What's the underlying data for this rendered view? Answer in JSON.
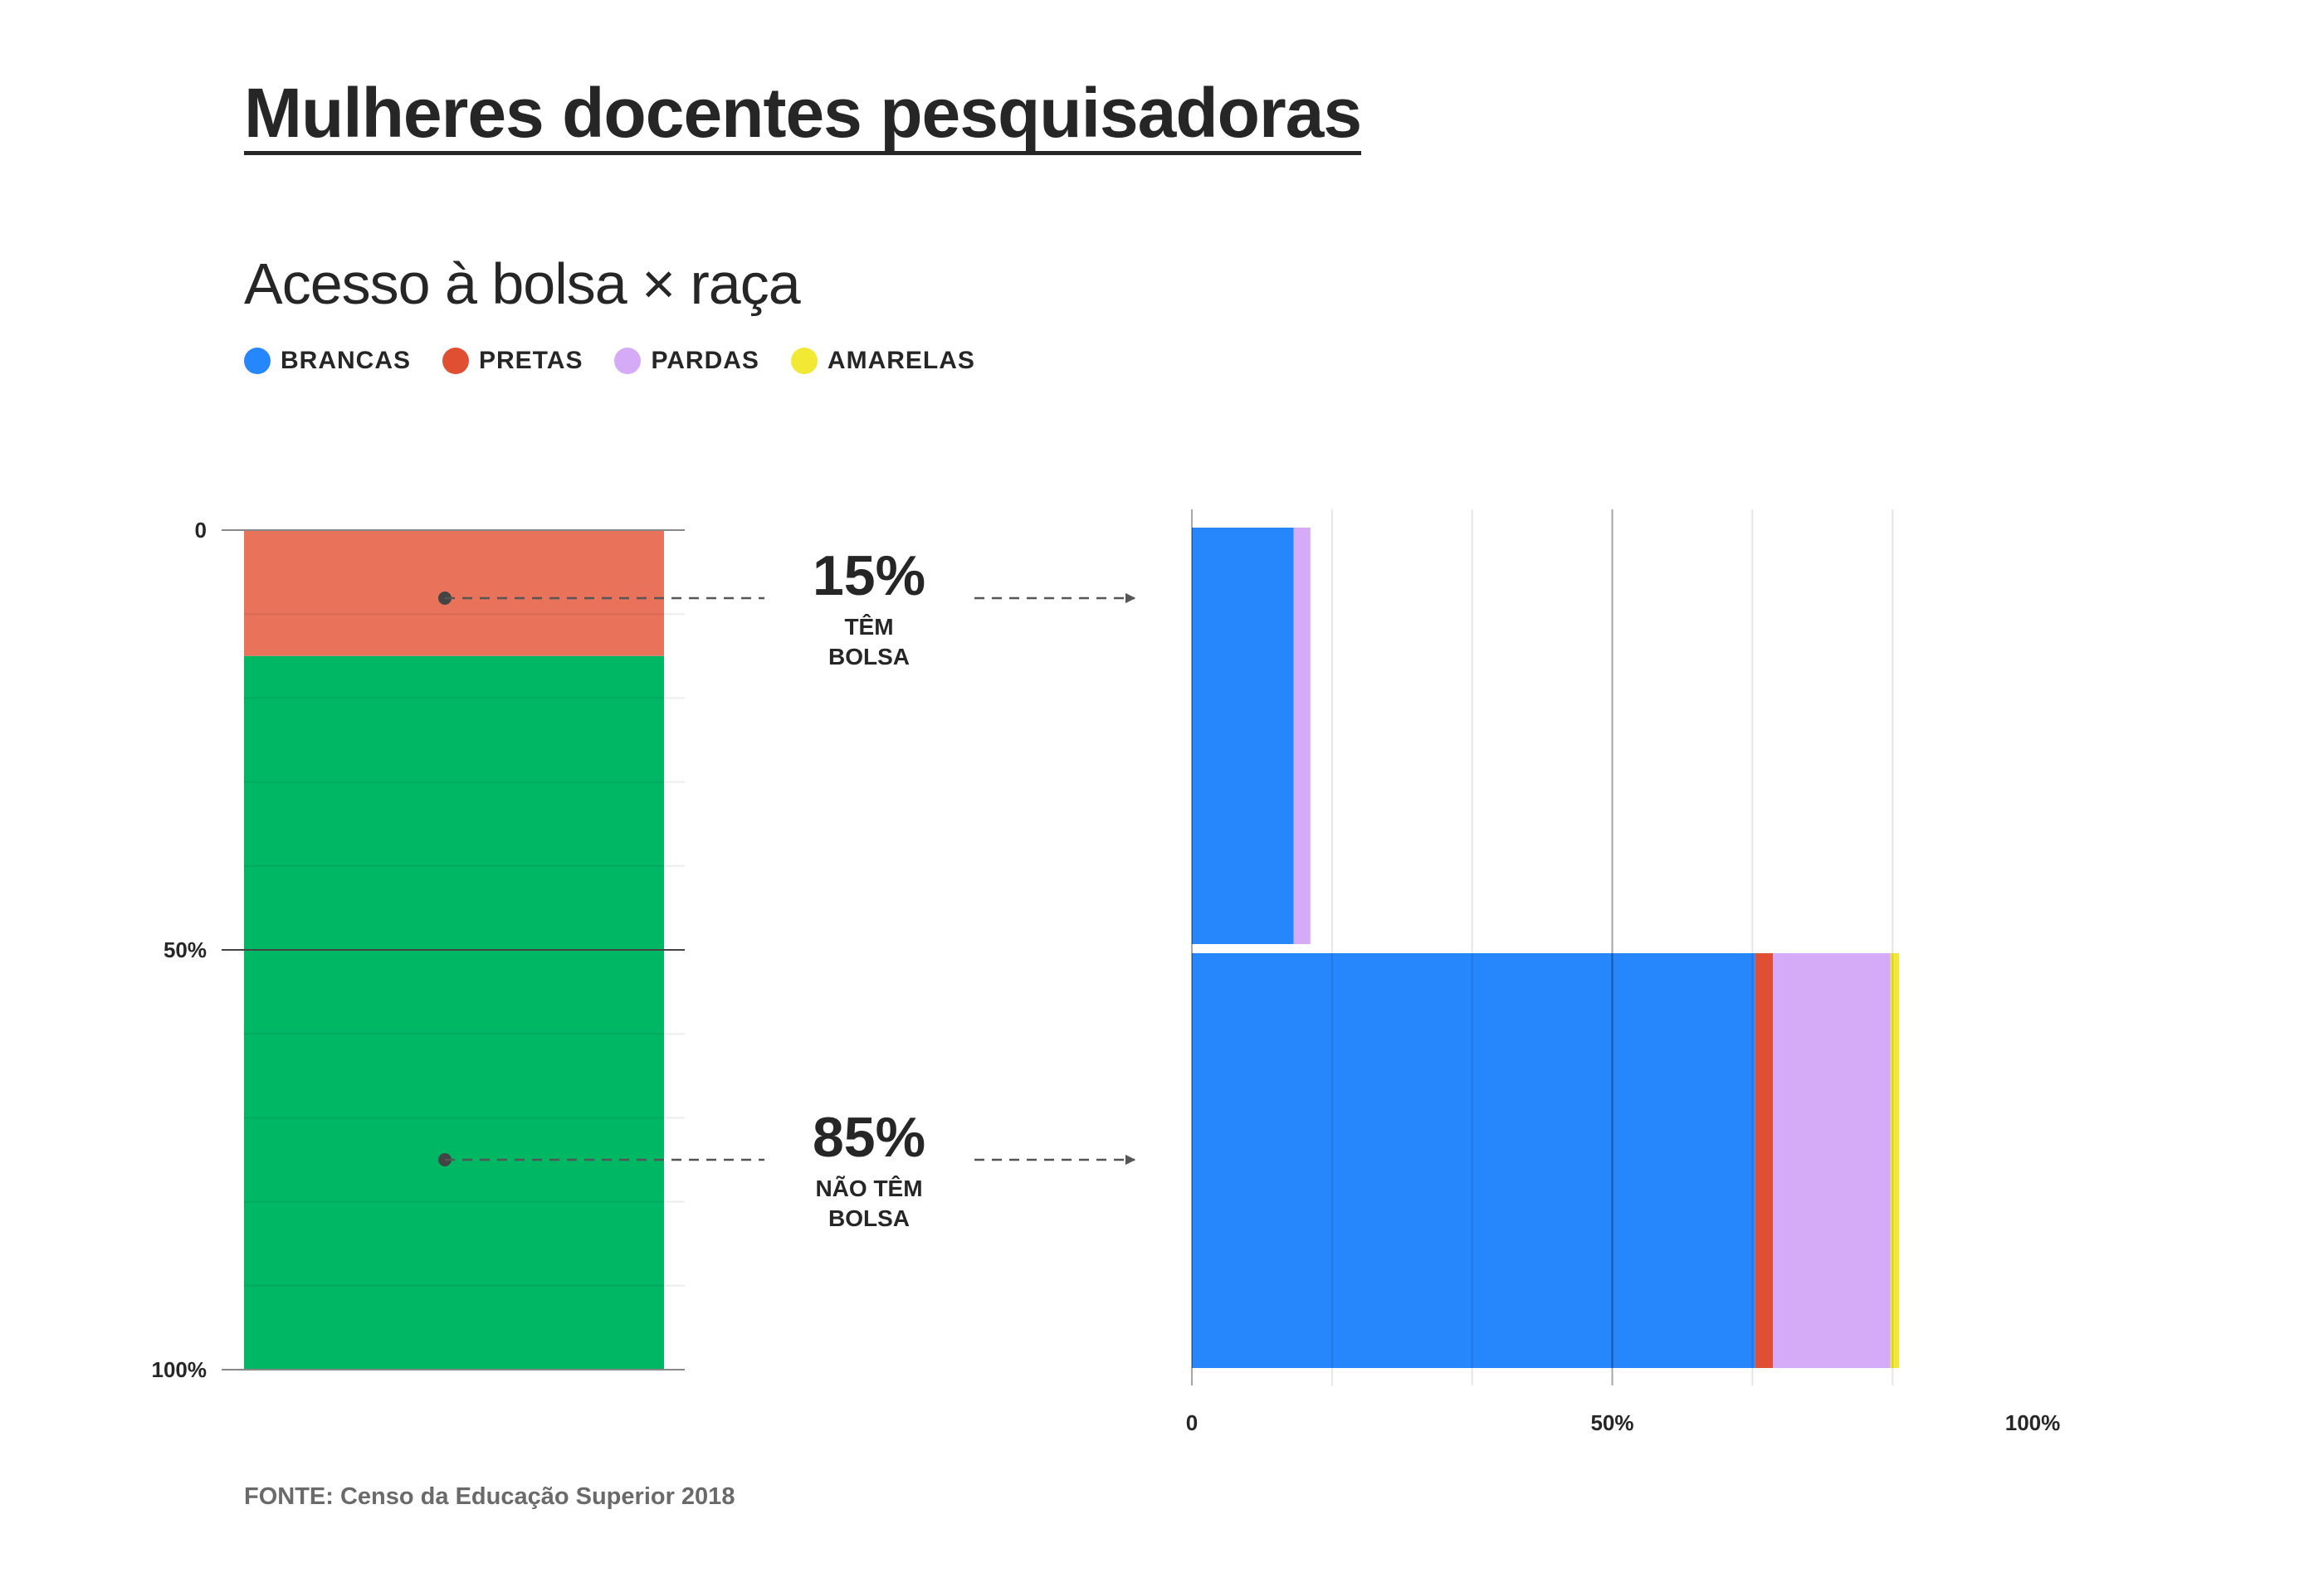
{
  "title": "Mulheres docentes pesquisadoras",
  "subtitle": "Acesso à bolsa × raça",
  "legend": [
    {
      "label": "BRANCAS",
      "color": "#2686fb"
    },
    {
      "label": "PRETAS",
      "color": "#e04f31"
    },
    {
      "label": "PARDAS",
      "color": "#d5abf8"
    },
    {
      "label": "AMARELAS",
      "color": "#f2e935"
    }
  ],
  "annotations": {
    "with": {
      "pct": "15%",
      "line1": "TÊM",
      "line2": "BOLSA"
    },
    "without": {
      "pct": "85%",
      "line1": "NÃO TÊM",
      "line2": "BOLSA"
    }
  },
  "source": "FONTE: Censo da Educação Superior 2018",
  "chart_data": [
    {
      "type": "bar",
      "orientation": "vertical-stacked",
      "categories": [
        "Têm bolsa",
        "Não têm bolsa"
      ],
      "values": [
        15,
        85
      ],
      "colors": [
        "#e8735a",
        "#00b764"
      ],
      "yticks": [
        "0",
        "50%",
        "100%"
      ],
      "ylim": [
        0,
        100
      ],
      "grid": true
    },
    {
      "type": "bar",
      "orientation": "horizontal-stacked",
      "categories": [
        "Têm bolsa",
        "Não têm bolsa"
      ],
      "series": [
        {
          "name": "BRANCAS",
          "values": [
            12.1,
            67.0
          ]
        },
        {
          "name": "PRETAS",
          "values": [
            0,
            2.1
          ]
        },
        {
          "name": "PARDAS",
          "values": [
            2.0,
            14.0
          ]
        },
        {
          "name": "AMARELAS",
          "values": [
            0,
            1.0
          ]
        }
      ],
      "xticks": [
        "0",
        "50%",
        "100%"
      ],
      "xlim": [
        0,
        100
      ],
      "grid": true
    }
  ]
}
